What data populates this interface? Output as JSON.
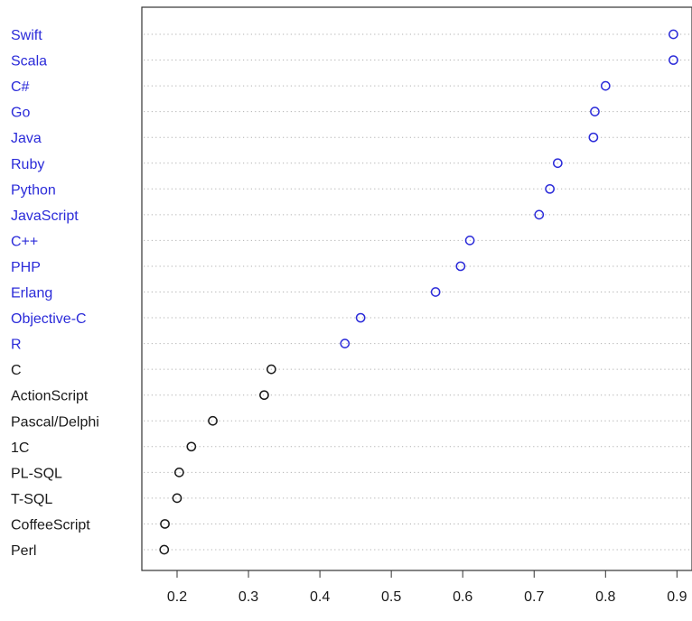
{
  "chart_data": {
    "type": "scatter",
    "title": "",
    "xlabel": "",
    "ylabel": "",
    "xlim": [
      0.15,
      0.91
    ],
    "x_ticks": [
      0.2,
      0.3,
      0.4,
      0.5,
      0.6,
      0.7,
      0.8,
      0.9
    ],
    "x_tick_labels": [
      "0.2",
      "0.3",
      "0.4",
      "0.5",
      "0.6",
      "0.7",
      "0.8",
      "0.9"
    ],
    "grid": "dotted horizontal lines per category",
    "legend": "none",
    "colors": {
      "highlighted": "#2b2bd9",
      "default": "#1a1a1a",
      "grid": "#b0b0b0"
    },
    "categories": [
      "Swift",
      "Scala",
      "C#",
      "Go",
      "Java",
      "Ruby",
      "Python",
      "JavaScript",
      "C++",
      "PHP",
      "Erlang",
      "Objective-C",
      "R",
      "C",
      "ActionScript",
      "Pascal/Delphi",
      "1C",
      "PL-SQL",
      "T-SQL",
      "CoffeeScript",
      "Perl"
    ],
    "values": [
      0.895,
      0.895,
      0.8,
      0.785,
      0.783,
      0.733,
      0.722,
      0.707,
      0.61,
      0.597,
      0.562,
      0.457,
      0.435,
      0.332,
      0.322,
      0.25,
      0.22,
      0.203,
      0.2,
      0.183,
      0.182
    ],
    "highlighted": [
      true,
      true,
      true,
      true,
      true,
      true,
      true,
      true,
      true,
      true,
      true,
      true,
      true,
      false,
      false,
      false,
      false,
      false,
      false,
      false,
      false
    ]
  }
}
